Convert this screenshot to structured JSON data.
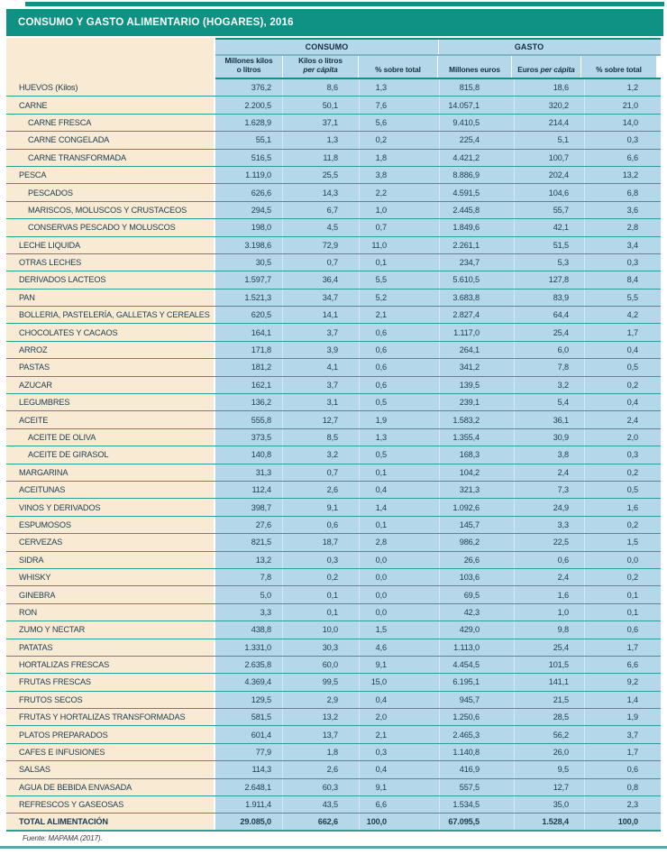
{
  "title": "CONSUMO Y GASTO ALIMENTARIO (HOGARES), 2016",
  "colors": {
    "teal": "#0f9283",
    "row_separator": "#2f9d90",
    "label_column_cream": "#f8ead3",
    "data_column_blue": "#b4d8e9",
    "text_navy": "#1c3c52",
    "bottom_rule": "#5aa5ae"
  },
  "table": {
    "groups": [
      {
        "label": "CONSUMO"
      },
      {
        "label": "GASTO"
      }
    ],
    "columns": [
      {
        "lines": [
          [
            "Millones kilos"
          ],
          [
            "o litros"
          ]
        ]
      },
      {
        "lines": [
          [
            "Kilos o litros"
          ],
          [
            {
              "t": "per cápita",
              "i": true
            }
          ]
        ]
      },
      {
        "lines": [
          [
            "% sobre total"
          ]
        ]
      },
      {
        "lines": [
          [
            "Millones euros"
          ]
        ]
      },
      {
        "lines": [
          [
            "Euros ",
            {
              "t": "per cápita",
              "i": true
            }
          ]
        ]
      },
      {
        "lines": [
          [
            "% sobre total"
          ]
        ]
      }
    ],
    "rows": [
      {
        "label": "HUEVOS (Kilos)",
        "indent": false,
        "bold": false,
        "values": [
          "376,2",
          "8,6",
          "1,3",
          "815,8",
          "18,6",
          "1,2"
        ]
      },
      {
        "label": "CARNE",
        "indent": false,
        "bold": false,
        "values": [
          "2.200,5",
          "50,1",
          "7,6",
          "14.057,1",
          "320,2",
          "21,0"
        ]
      },
      {
        "label": "CARNE FRESCA",
        "indent": true,
        "bold": false,
        "values": [
          "1.628,9",
          "37,1",
          "5,6",
          "9.410,5",
          "214,4",
          "14,0"
        ]
      },
      {
        "label": "CARNE CONGELADA",
        "indent": true,
        "bold": false,
        "values": [
          "55,1",
          "1,3",
          "0,2",
          "225,4",
          "5,1",
          "0,3"
        ]
      },
      {
        "label": "CARNE TRANSFORMADA",
        "indent": true,
        "bold": false,
        "values": [
          "516,5",
          "11,8",
          "1,8",
          "4.421,2",
          "100,7",
          "6,6"
        ]
      },
      {
        "label": "PESCA",
        "indent": false,
        "bold": false,
        "values": [
          "1.119,0",
          "25,5",
          "3,8",
          "8.886,9",
          "202,4",
          "13,2"
        ]
      },
      {
        "label": "PESCADOS",
        "indent": true,
        "bold": false,
        "values": [
          "626,6",
          "14,3",
          "2,2",
          "4.591,5",
          "104,6",
          "6,8"
        ]
      },
      {
        "label": "MARISCOS, MOLUSCOS Y CRUSTACEOS",
        "indent": true,
        "bold": false,
        "values": [
          "294,5",
          "6,7",
          "1,0",
          "2.445,8",
          "55,7",
          "3,6"
        ]
      },
      {
        "label": "CONSERVAS PESCADO Y MOLUSCOS",
        "indent": true,
        "bold": false,
        "values": [
          "198,0",
          "4,5",
          "0,7",
          "1.849,6",
          "42,1",
          "2,8"
        ]
      },
      {
        "label": "LECHE LIQUIDA",
        "indent": false,
        "bold": false,
        "values": [
          "3.198,6",
          "72,9",
          "11,0",
          "2.261,1",
          "51,5",
          "3,4"
        ]
      },
      {
        "label": "OTRAS LECHES",
        "indent": false,
        "bold": false,
        "values": [
          "30,5",
          "0,7",
          "0,1",
          "234,7",
          "5,3",
          "0,3"
        ]
      },
      {
        "label": "DERIVADOS LACTEOS",
        "indent": false,
        "bold": false,
        "values": [
          "1.597,7",
          "36,4",
          "5,5",
          "5.610,5",
          "127,8",
          "8,4"
        ]
      },
      {
        "label": "PAN",
        "indent": false,
        "bold": false,
        "values": [
          "1.521,3",
          "34,7",
          "5,2",
          "3.683,8",
          "83,9",
          "5,5"
        ]
      },
      {
        "label": "BOLLERIA, PASTELERÍA, GALLETAS Y CEREALES",
        "indent": false,
        "bold": false,
        "values": [
          "620,5",
          "14,1",
          "2,1",
          "2.827,4",
          "64,4",
          "4,2"
        ]
      },
      {
        "label": "CHOCOLATES Y CACAOS",
        "indent": false,
        "bold": false,
        "values": [
          "164,1",
          "3,7",
          "0,6",
          "1.117,0",
          "25,4",
          "1,7"
        ]
      },
      {
        "label": "ARROZ",
        "indent": false,
        "bold": false,
        "values": [
          "171,8",
          "3,9",
          "0,6",
          "264,1",
          "6,0",
          "0,4"
        ]
      },
      {
        "label": "PASTAS",
        "indent": false,
        "bold": false,
        "values": [
          "181,2",
          "4,1",
          "0,6",
          "341,2",
          "7,8",
          "0,5"
        ]
      },
      {
        "label": "AZUCAR",
        "indent": false,
        "bold": false,
        "values": [
          "162,1",
          "3,7",
          "0,6",
          "139,5",
          "3,2",
          "0,2"
        ]
      },
      {
        "label": "LEGUMBRES",
        "indent": false,
        "bold": false,
        "values": [
          "136,2",
          "3,1",
          "0,5",
          "239,1",
          "5,4",
          "0,4"
        ]
      },
      {
        "label": "ACEITE",
        "indent": false,
        "bold": false,
        "values": [
          "555,8",
          "12,7",
          "1,9",
          "1.583,2",
          "36,1",
          "2,4"
        ]
      },
      {
        "label": "ACEITE DE OLIVA",
        "indent": true,
        "bold": false,
        "values": [
          "373,5",
          "8,5",
          "1,3",
          "1.355,4",
          "30,9",
          "2,0"
        ]
      },
      {
        "label": "ACEITE DE GIRASOL",
        "indent": true,
        "bold": false,
        "values": [
          "140,8",
          "3,2",
          "0,5",
          "168,3",
          "3,8",
          "0,3"
        ]
      },
      {
        "label": "MARGARINA",
        "indent": false,
        "bold": false,
        "values": [
          "31,3",
          "0,7",
          "0,1",
          "104,2",
          "2,4",
          "0,2"
        ]
      },
      {
        "label": "ACEITUNAS",
        "indent": false,
        "bold": false,
        "values": [
          "112,4",
          "2,6",
          "0,4",
          "321,3",
          "7,3",
          "0,5"
        ]
      },
      {
        "label": "VINOS Y DERIVADOS",
        "indent": false,
        "bold": false,
        "values": [
          "398,7",
          "9,1",
          "1,4",
          "1.092,6",
          "24,9",
          "1,6"
        ]
      },
      {
        "label": "ESPUMOSOS",
        "indent": false,
        "bold": false,
        "values": [
          "27,6",
          "0,6",
          "0,1",
          "145,7",
          "3,3",
          "0,2"
        ]
      },
      {
        "label": "CERVEZAS",
        "indent": false,
        "bold": false,
        "values": [
          "821,5",
          "18,7",
          "2,8",
          "986,2",
          "22,5",
          "1,5"
        ]
      },
      {
        "label": "SIDRA",
        "indent": false,
        "bold": false,
        "values": [
          "13,2",
          "0,3",
          "0,0",
          "26,6",
          "0,6",
          "0,0"
        ]
      },
      {
        "label": "WHISKY",
        "indent": false,
        "bold": false,
        "values": [
          "7,8",
          "0,2",
          "0,0",
          "103,6",
          "2,4",
          "0,2"
        ]
      },
      {
        "label": "GINEBRA",
        "indent": false,
        "bold": false,
        "values": [
          "5,0",
          "0,1",
          "0,0",
          "69,5",
          "1,6",
          "0,1"
        ]
      },
      {
        "label": "RON",
        "indent": false,
        "bold": false,
        "values": [
          "3,3",
          "0,1",
          "0,0",
          "42,3",
          "1,0",
          "0,1"
        ]
      },
      {
        "label": "ZUMO Y NECTAR",
        "indent": false,
        "bold": false,
        "values": [
          "438,8",
          "10,0",
          "1,5",
          "429,0",
          "9,8",
          "0,6"
        ]
      },
      {
        "label": "PATATAS",
        "indent": false,
        "bold": false,
        "values": [
          "1.331,0",
          "30,3",
          "4,6",
          "1.113,0",
          "25,4",
          "1,7"
        ]
      },
      {
        "label": "HORTALIZAS FRESCAS",
        "indent": false,
        "bold": false,
        "values": [
          "2.635,8",
          "60,0",
          "9,1",
          "4.454,5",
          "101,5",
          "6,6"
        ]
      },
      {
        "label": "FRUTAS FRESCAS",
        "indent": false,
        "bold": false,
        "values": [
          "4.369,4",
          "99,5",
          "15,0",
          "6.195,1",
          "141,1",
          "9,2"
        ]
      },
      {
        "label": "FRUTOS SECOS",
        "indent": false,
        "bold": false,
        "values": [
          "129,5",
          "2,9",
          "0,4",
          "945,7",
          "21,5",
          "1,4"
        ]
      },
      {
        "label": "FRUTAS Y HORTALIZAS TRANSFORMADAS",
        "indent": false,
        "bold": false,
        "values": [
          "581,5",
          "13,2",
          "2,0",
          "1.250,6",
          "28,5",
          "1,9"
        ]
      },
      {
        "label": "PLATOS PREPARADOS",
        "indent": false,
        "bold": false,
        "values": [
          "601,4",
          "13,7",
          "2,1",
          "2.465,3",
          "56,2",
          "3,7"
        ]
      },
      {
        "label": "CAFES E INFUSIONES",
        "indent": false,
        "bold": false,
        "values": [
          "77,9",
          "1,8",
          "0,3",
          "1.140,8",
          "26,0",
          "1,7"
        ]
      },
      {
        "label": "SALSAS",
        "indent": false,
        "bold": false,
        "values": [
          "114,3",
          "2,6",
          "0,4",
          "416,9",
          "9,5",
          "0,6"
        ]
      },
      {
        "label": "AGUA DE BEBIDA ENVASADA",
        "indent": false,
        "bold": false,
        "values": [
          "2.648,1",
          "60,3",
          "9,1",
          "557,5",
          "12,7",
          "0,8"
        ]
      },
      {
        "label": "REFRESCOS Y GASEOSAS",
        "indent": false,
        "bold": false,
        "values": [
          "1.911,4",
          "43,5",
          "6,6",
          "1.534,5",
          "35,0",
          "2,3"
        ]
      },
      {
        "label": "TOTAL ALIMENTACIÓN",
        "indent": false,
        "bold": true,
        "values": [
          "29.085,0",
          "662,6",
          "100,0",
          "67.095,5",
          "1.528,4",
          "100,0"
        ]
      }
    ]
  },
  "footer": {
    "source": "Fuente: MAPAMA (2017)."
  }
}
